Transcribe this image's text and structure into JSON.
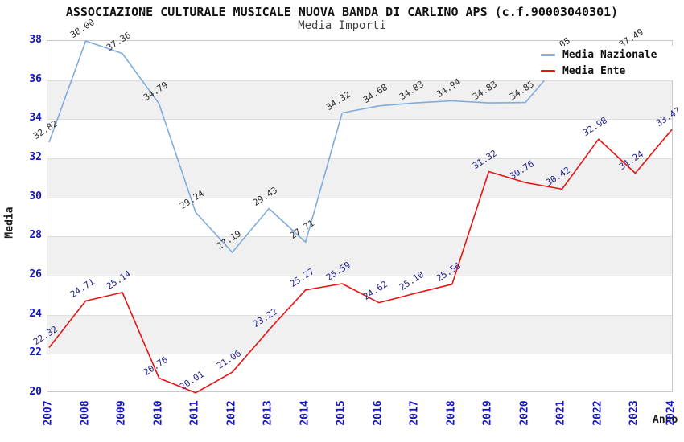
{
  "title": "ASSOCIAZIONE CULTURALE MUSICALE NUOVA BANDA DI CARLINO APS (c.f.90003040301)",
  "subtitle": "Media Importi",
  "axes": {
    "y_label": "Media",
    "x_label": "Anno",
    "y_ticks": [
      38,
      36,
      34,
      32,
      30,
      28,
      26,
      24,
      22,
      20
    ],
    "tick_color": "#1414cc"
  },
  "legend": {
    "items": [
      {
        "label": "Media Nazionale",
        "color": "#7facdf"
      },
      {
        "label": "Media Ente",
        "color": "#e81414"
      }
    ]
  },
  "colors": {
    "band": "#f0f0f0",
    "gridline": "#dddddd",
    "plot_border": "#c9c9c9",
    "title": "#111111",
    "subtitle": "#3f3f3f"
  },
  "chart_data": {
    "type": "line",
    "title": "ASSOCIAZIONE CULTURALE MUSICALE NUOVA BANDA DI CARLINO APS (c.f.90003040301)",
    "subtitle": "Media Importi",
    "xlabel": "Anno",
    "ylabel": "Media",
    "ylim": [
      20,
      38
    ],
    "grid": true,
    "legend_position": "top-right",
    "categories": [
      "2007",
      "2008",
      "2009",
      "2010",
      "2011",
      "2012",
      "2013",
      "2014",
      "2015",
      "2016",
      "2017",
      "2018",
      "2019",
      "2020",
      "2021",
      "2022",
      "2023",
      "2024"
    ],
    "series": [
      {
        "name": "Media Nazionale",
        "color": "#7facdf",
        "label_color": "#2b2b2b",
        "values": [
          32.82,
          38.0,
          37.36,
          34.79,
          29.24,
          27.19,
          29.43,
          27.71,
          34.32,
          34.68,
          34.83,
          34.94,
          34.83,
          34.85,
          37.05,
          null,
          37.49,
          null
        ]
      },
      {
        "name": "Media Ente",
        "color": "#e81414",
        "label_color": "#1e1e8e",
        "values": [
          22.32,
          24.71,
          25.14,
          20.76,
          20.01,
          21.06,
          23.22,
          25.27,
          25.59,
          24.62,
          25.1,
          25.56,
          31.32,
          30.76,
          30.42,
          32.98,
          31.24,
          33.47
        ]
      }
    ]
  }
}
